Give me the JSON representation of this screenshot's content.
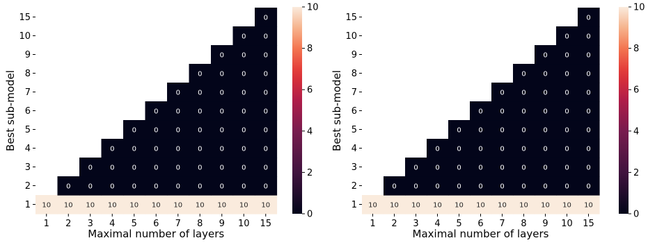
{
  "chart_data": [
    {
      "type": "heatmap",
      "xlabel": "Maximal number of layers",
      "ylabel": "Best sub-model",
      "x_categories": [
        "1",
        "2",
        "3",
        "4",
        "5",
        "6",
        "7",
        "8",
        "9",
        "10",
        "15"
      ],
      "y_categories": [
        "1",
        "2",
        "3",
        "4",
        "5",
        "6",
        "7",
        "8",
        "9",
        "10",
        "15"
      ],
      "mask": "cells where best sub-model exceeds maximal number of layers are blank",
      "values": [
        [
          10,
          10,
          10,
          10,
          10,
          10,
          10,
          10,
          10,
          10,
          10
        ],
        [
          null,
          0,
          0,
          0,
          0,
          0,
          0,
          0,
          0,
          0,
          0
        ],
        [
          null,
          null,
          0,
          0,
          0,
          0,
          0,
          0,
          0,
          0,
          0
        ],
        [
          null,
          null,
          null,
          0,
          0,
          0,
          0,
          0,
          0,
          0,
          0
        ],
        [
          null,
          null,
          null,
          null,
          0,
          0,
          0,
          0,
          0,
          0,
          0
        ],
        [
          null,
          null,
          null,
          null,
          null,
          0,
          0,
          0,
          0,
          0,
          0
        ],
        [
          null,
          null,
          null,
          null,
          null,
          null,
          0,
          0,
          0,
          0,
          0
        ],
        [
          null,
          null,
          null,
          null,
          null,
          null,
          null,
          0,
          0,
          0,
          0
        ],
        [
          null,
          null,
          null,
          null,
          null,
          null,
          null,
          null,
          0,
          0,
          0
        ],
        [
          null,
          null,
          null,
          null,
          null,
          null,
          null,
          null,
          null,
          0,
          0
        ],
        [
          null,
          null,
          null,
          null,
          null,
          null,
          null,
          null,
          null,
          null,
          0
        ]
      ],
      "colorbar": {
        "range": [
          0,
          10
        ],
        "ticks": [
          "0",
          "2",
          "4",
          "6",
          "8",
          "10"
        ],
        "colormap": "rocket"
      }
    },
    {
      "type": "heatmap",
      "xlabel": "Maximal number of layers",
      "ylabel": "Best sub-model",
      "x_categories": [
        "1",
        "2",
        "3",
        "4",
        "5",
        "6",
        "7",
        "8",
        "9",
        "10",
        "15"
      ],
      "y_categories": [
        "1",
        "2",
        "3",
        "4",
        "5",
        "6",
        "7",
        "8",
        "9",
        "10",
        "15"
      ],
      "mask": "cells where best sub-model exceeds maximal number of layers are blank",
      "values": [
        [
          10,
          10,
          10,
          10,
          10,
          10,
          10,
          10,
          10,
          10,
          10
        ],
        [
          null,
          0,
          0,
          0,
          0,
          0,
          0,
          0,
          0,
          0,
          0
        ],
        [
          null,
          null,
          0,
          0,
          0,
          0,
          0,
          0,
          0,
          0,
          0
        ],
        [
          null,
          null,
          null,
          0,
          0,
          0,
          0,
          0,
          0,
          0,
          0
        ],
        [
          null,
          null,
          null,
          null,
          0,
          0,
          0,
          0,
          0,
          0,
          0
        ],
        [
          null,
          null,
          null,
          null,
          null,
          0,
          0,
          0,
          0,
          0,
          0
        ],
        [
          null,
          null,
          null,
          null,
          null,
          null,
          0,
          0,
          0,
          0,
          0
        ],
        [
          null,
          null,
          null,
          null,
          null,
          null,
          null,
          0,
          0,
          0,
          0
        ],
        [
          null,
          null,
          null,
          null,
          null,
          null,
          null,
          null,
          0,
          0,
          0
        ],
        [
          null,
          null,
          null,
          null,
          null,
          null,
          null,
          null,
          null,
          0,
          0
        ],
        [
          null,
          null,
          null,
          null,
          null,
          null,
          null,
          null,
          null,
          null,
          0
        ]
      ],
      "colorbar": {
        "range": [
          0,
          10
        ],
        "ticks": [
          "0",
          "2",
          "4",
          "6",
          "8",
          "10"
        ],
        "colormap": "rocket"
      }
    }
  ]
}
